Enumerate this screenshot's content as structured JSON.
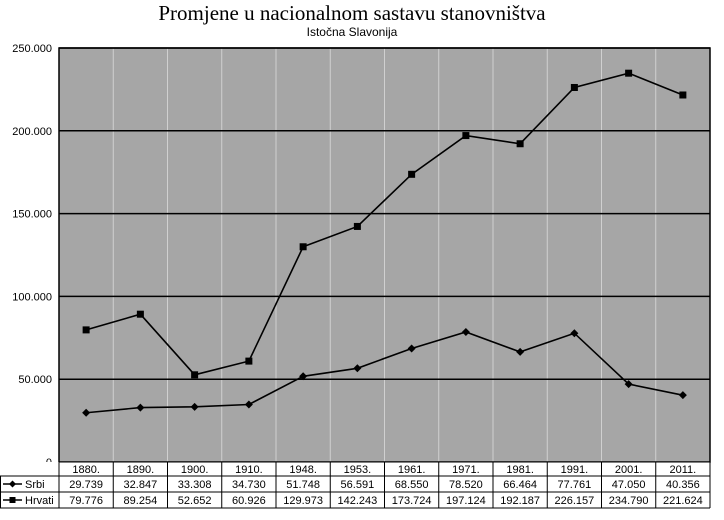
{
  "chart_data": {
    "type": "line",
    "title": "Promjene u nacionalnom sastavu stanovništva",
    "subtitle": "Istočna Slavonija",
    "xlabel": "",
    "ylabel": "",
    "ylim": [
      0,
      250000
    ],
    "yticks": [
      0,
      50000,
      100000,
      150000,
      200000,
      250000
    ],
    "ytick_labels": [
      "0",
      "50.000",
      "100.000",
      "150.000",
      "200.000",
      "250.000"
    ],
    "grid": "horizontal",
    "legend": "data-table",
    "categories": [
      "1880.",
      "1890.",
      "1900.",
      "1910.",
      "1948.",
      "1953.",
      "1961.",
      "1971.",
      "1981.",
      "1991.",
      "2001.",
      "2011."
    ],
    "series": [
      {
        "name": "Srbi",
        "marker": "diamond",
        "values": [
          29739,
          32847,
          33308,
          34730,
          51748,
          56591,
          68550,
          78520,
          66464,
          77761,
          47050,
          40356
        ],
        "labels": [
          "29.739",
          "32.847",
          "33.308",
          "34.730",
          "51.748",
          "56.591",
          "68.550",
          "78.520",
          "66.464",
          "77.761",
          "47.050",
          "40.356"
        ]
      },
      {
        "name": "Hrvati",
        "marker": "square",
        "values": [
          79776,
          89254,
          52652,
          60926,
          129973,
          142243,
          173724,
          197124,
          192187,
          226157,
          234790,
          221624
        ],
        "labels": [
          "79.776",
          "89.254",
          "52.652",
          "60.926",
          "129.973",
          "142.243",
          "173.724",
          "197.124",
          "192.187",
          "226.157",
          "234.790",
          "221.624"
        ]
      }
    ],
    "colors": {
      "plot_bg": "#a6a6a6",
      "line": "#000000",
      "grid": "#000000"
    }
  }
}
